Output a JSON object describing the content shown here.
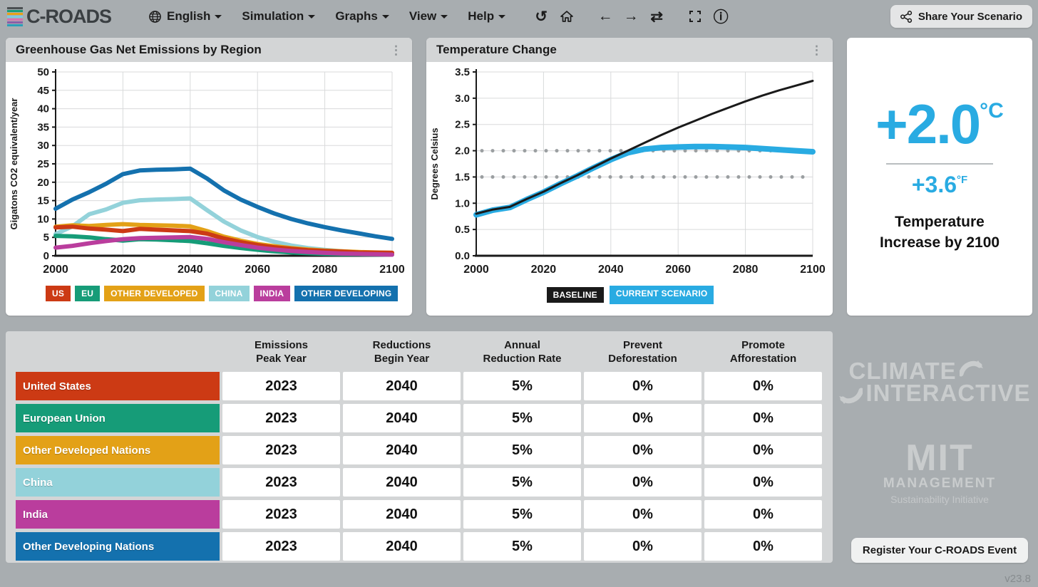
{
  "topbar": {
    "logo_text": "C-ROADS",
    "logo_stripe_colors": [
      "#4a4f52",
      "#1a9c78",
      "#e8a117",
      "#7fc9e0",
      "#d873b0",
      "#8a5fa8",
      "#2a9fb8"
    ],
    "menus": [
      {
        "id": "english",
        "label": "English",
        "globe": true
      },
      {
        "id": "simulation",
        "label": "Simulation",
        "globe": false
      },
      {
        "id": "graphs",
        "label": "Graphs",
        "globe": false
      },
      {
        "id": "view",
        "label": "View",
        "globe": false
      },
      {
        "id": "help",
        "label": "Help",
        "globe": false
      }
    ],
    "icons": [
      "undo-icon",
      "home-icon",
      "arrow-left-icon",
      "arrow-right-icon",
      "refresh-icon",
      "fullscreen-icon",
      "info-icon"
    ],
    "share_button_label": "Share Your Scenario"
  },
  "summary": {
    "celsius_value": "+2.0",
    "celsius_unit": "°C",
    "fahrenheit_value": "+3.6",
    "fahrenheit_unit": "°F",
    "caption": "Temperature Increase by 2100",
    "accent_color": "#29abe2"
  },
  "chart_data": [
    {
      "type": "line",
      "title": "Greenhouse Gas Net Emissions by Region",
      "ylabel": "Gigatons CO2 equivalent/year",
      "xlabel": "",
      "xlim": [
        2000,
        2100
      ],
      "ylim": [
        0,
        50
      ],
      "xtick_step": 20,
      "ytick_step": 5,
      "ydecimals": 0,
      "grid": true,
      "legend_position": "bottom-left",
      "x": [
        2000,
        2005,
        2010,
        2015,
        2020,
        2025,
        2030,
        2035,
        2040,
        2045,
        2050,
        2055,
        2060,
        2065,
        2070,
        2075,
        2080,
        2085,
        2090,
        2095,
        2100
      ],
      "series": [
        {
          "name": "CHINA",
          "color": "#93d2da",
          "width": 6,
          "values": [
            5.9,
            8.0,
            11.3,
            12.6,
            14.4,
            15.1,
            15.3,
            15.4,
            15.6,
            12.4,
            9.3,
            6.9,
            5.1,
            3.8,
            2.8,
            2.1,
            1.6,
            1.2,
            0.9,
            0.7,
            0.5
          ]
        },
        {
          "name": "OTHER DEVELOPED",
          "color": "#e3a117",
          "width": 6,
          "values": [
            7.9,
            8.3,
            8.1,
            8.4,
            8.6,
            8.4,
            8.3,
            8.2,
            8.0,
            6.7,
            5.2,
            4.1,
            3.2,
            2.6,
            2.1,
            1.7,
            1.4,
            1.2,
            1.0,
            0.9,
            0.8
          ]
        },
        {
          "name": "US",
          "color": "#cc3a14",
          "width": 6,
          "values": [
            7.7,
            7.9,
            7.4,
            7.1,
            6.7,
            7.3,
            7.1,
            6.9,
            6.7,
            6.0,
            4.7,
            3.7,
            2.9,
            2.3,
            1.9,
            1.5,
            1.3,
            1.1,
            0.9,
            0.85,
            0.8
          ]
        },
        {
          "name": "EU",
          "color": "#169c78",
          "width": 6,
          "values": [
            5.4,
            5.3,
            5.0,
            4.5,
            4.1,
            4.5,
            4.4,
            4.2,
            4.0,
            3.4,
            2.7,
            2.1,
            1.6,
            1.2,
            0.9,
            0.7,
            0.55,
            0.45,
            0.4,
            0.35,
            0.3
          ]
        },
        {
          "name": "INDIA",
          "color": "#ba3d9d",
          "width": 6,
          "values": [
            2.2,
            2.7,
            3.4,
            4.0,
            4.5,
            4.8,
            4.9,
            5.0,
            5.1,
            4.6,
            3.7,
            2.9,
            2.2,
            1.7,
            1.3,
            1.0,
            0.8,
            0.6,
            0.5,
            0.4,
            0.3
          ]
        },
        {
          "name": "OTHER DEVELOPING",
          "color": "#1471ae",
          "width": 6,
          "values": [
            12.8,
            15.3,
            17.3,
            19.6,
            22.2,
            23.2,
            23.4,
            23.5,
            23.7,
            21.0,
            17.8,
            15.3,
            13.3,
            11.5,
            10.0,
            8.8,
            7.8,
            6.9,
            6.1,
            5.3,
            4.6
          ]
        }
      ],
      "legend": [
        {
          "label": "US",
          "color": "#cc3a14"
        },
        {
          "label": "EU",
          "color": "#169c78"
        },
        {
          "label": "OTHER DEVELOPED",
          "color": "#e3a117"
        },
        {
          "label": "CHINA",
          "color": "#93d2da"
        },
        {
          "label": "INDIA",
          "color": "#ba3d9d"
        },
        {
          "label": "OTHER DEVELOPING",
          "color": "#1471ae"
        }
      ]
    },
    {
      "type": "line",
      "title": "Temperature Change",
      "ylabel": "Degrees Celsius",
      "xlabel": "",
      "xlim": [
        2000,
        2100
      ],
      "ylim": [
        0,
        3.5
      ],
      "xtick_step": 20,
      "ytick_step": 0.5,
      "ydecimals": 1,
      "grid": true,
      "reference_dotted_lines": [
        1.5,
        2.0
      ],
      "legend_position": "bottom-center",
      "x": [
        2000,
        2005,
        2010,
        2015,
        2020,
        2025,
        2030,
        2035,
        2040,
        2045,
        2050,
        2055,
        2060,
        2065,
        2070,
        2075,
        2080,
        2085,
        2090,
        2095,
        2100
      ],
      "series": [
        {
          "name": "CURRENT SCENARIO",
          "color": "#29abe2",
          "width": 8,
          "values": [
            0.78,
            0.87,
            0.92,
            1.07,
            1.21,
            1.37,
            1.52,
            1.68,
            1.83,
            1.96,
            2.03,
            2.06,
            2.07,
            2.08,
            2.08,
            2.07,
            2.06,
            2.04,
            2.02,
            2.0,
            1.98
          ]
        },
        {
          "name": "BASELINE",
          "color": "#1a1a1a",
          "width": 3,
          "values": [
            0.8,
            0.88,
            0.93,
            1.08,
            1.22,
            1.38,
            1.53,
            1.69,
            1.85,
            2.0,
            2.15,
            2.3,
            2.44,
            2.57,
            2.7,
            2.82,
            2.94,
            3.05,
            3.15,
            3.24,
            3.33
          ]
        }
      ],
      "legend": [
        {
          "label": "BASELINE",
          "color": "#1a1a1a",
          "bordered": true
        },
        {
          "label": "CURRENT SCENARIO",
          "color": "#29abe2"
        }
      ]
    }
  ],
  "table": {
    "columns": [
      {
        "line1": "Emissions",
        "line2": "Peak Year"
      },
      {
        "line1": "Reductions",
        "line2": "Begin Year"
      },
      {
        "line1": "Annual",
        "line2": "Reduction Rate"
      },
      {
        "line1": "Prevent",
        "line2": "Deforestation"
      },
      {
        "line1": "Promote",
        "line2": "Afforestation"
      }
    ],
    "rows": [
      {
        "label": "United States",
        "color": "#cc3a14",
        "values": [
          "2023",
          "2040",
          "5%",
          "0%",
          "0%"
        ]
      },
      {
        "label": "European Union",
        "color": "#169c78",
        "values": [
          "2023",
          "2040",
          "5%",
          "0%",
          "0%"
        ]
      },
      {
        "label": "Other Developed Nations",
        "color": "#e3a117",
        "values": [
          "2023",
          "2040",
          "5%",
          "0%",
          "0%"
        ]
      },
      {
        "label": "China",
        "color": "#93d2da",
        "values": [
          "2023",
          "2040",
          "5%",
          "0%",
          "0%"
        ]
      },
      {
        "label": "India",
        "color": "#ba3d9d",
        "values": [
          "2023",
          "2040",
          "5%",
          "0%",
          "0%"
        ]
      },
      {
        "label": "Other Developing Nations",
        "color": "#1471ae",
        "values": [
          "2023",
          "2040",
          "5%",
          "0%",
          "0%"
        ]
      }
    ]
  },
  "branding": {
    "climate_word1": "CLIMATE",
    "climate_word2": "INTERACTIVE",
    "mit_word": "MIT",
    "mit_management": "MANAGEMENT",
    "mit_sub": "Sustainability Initiative",
    "register_button_label": "Register Your C-ROADS Event"
  },
  "version": "v23.8"
}
